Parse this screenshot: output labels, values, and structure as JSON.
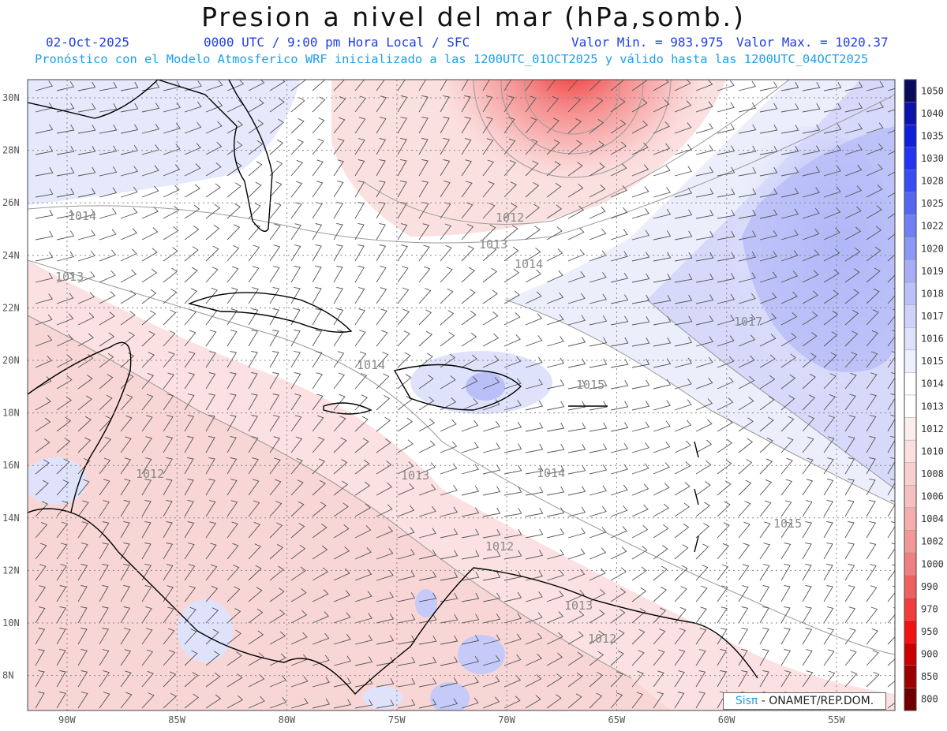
{
  "header": {
    "title": "Presion a nivel del mar (hPa,somb.)",
    "date": "02-Oct-2025",
    "time_info": "0000 UTC / 9:00 pm Hora Local / SFC",
    "value_min": "Valor Min. = 983.975",
    "value_max": "Valor Max. = 1020.37",
    "forecast_note": "Pronóstico con el Modelo Atmosferico WRF inicializado a las 1200UTC_01OCT2025 y válido hasta las  1200UTC_04OCT2025"
  },
  "credit": {
    "brand": "Sisπ",
    "text": "- ONAMET/REP.DOM."
  },
  "map": {
    "lon_labels": [
      "90W",
      "85W",
      "80W",
      "75W",
      "70W",
      "65W",
      "60W",
      "55W"
    ],
    "lat_labels": [
      "30N",
      "28N",
      "26N",
      "24N",
      "22N",
      "20N",
      "18N",
      "16N",
      "14N",
      "12N",
      "10N",
      "8N"
    ],
    "isobar_labels": [
      "1014",
      "1013",
      "1012",
      "1013",
      "1014",
      "1017",
      "1014",
      "1015",
      "1013",
      "1014",
      "1015",
      "1012",
      "1013",
      "1012",
      "1012"
    ]
  },
  "legend": {
    "levels": [
      "1050",
      "1040",
      "1035",
      "1030",
      "1028",
      "1025",
      "1022",
      "1020",
      "1019",
      "1018",
      "1017",
      "1016",
      "1015",
      "1014",
      "1013",
      "1012",
      "1010",
      "1008",
      "1006",
      "1004",
      "1002",
      "1000",
      "990",
      "970",
      "950",
      "900",
      "850",
      "800"
    ],
    "colors": [
      "#0a0a5e",
      "#0d13a8",
      "#1020d8",
      "#2135f2",
      "#3a4cf4",
      "#5566f2",
      "#7080f4",
      "#8c98f6",
      "#a6aef8",
      "#bcc2f9",
      "#cfd3fa",
      "#dfe2fb",
      "#eef0fd",
      "#ffffff",
      "#ffffff",
      "#fdeeee",
      "#fbe0e0",
      "#f9d0d0",
      "#f7c0c0",
      "#f5adad",
      "#f39898",
      "#f07f7f",
      "#f06060",
      "#f03c3c",
      "#f21212",
      "#cc0000",
      "#9c0000",
      "#700000"
    ]
  }
}
